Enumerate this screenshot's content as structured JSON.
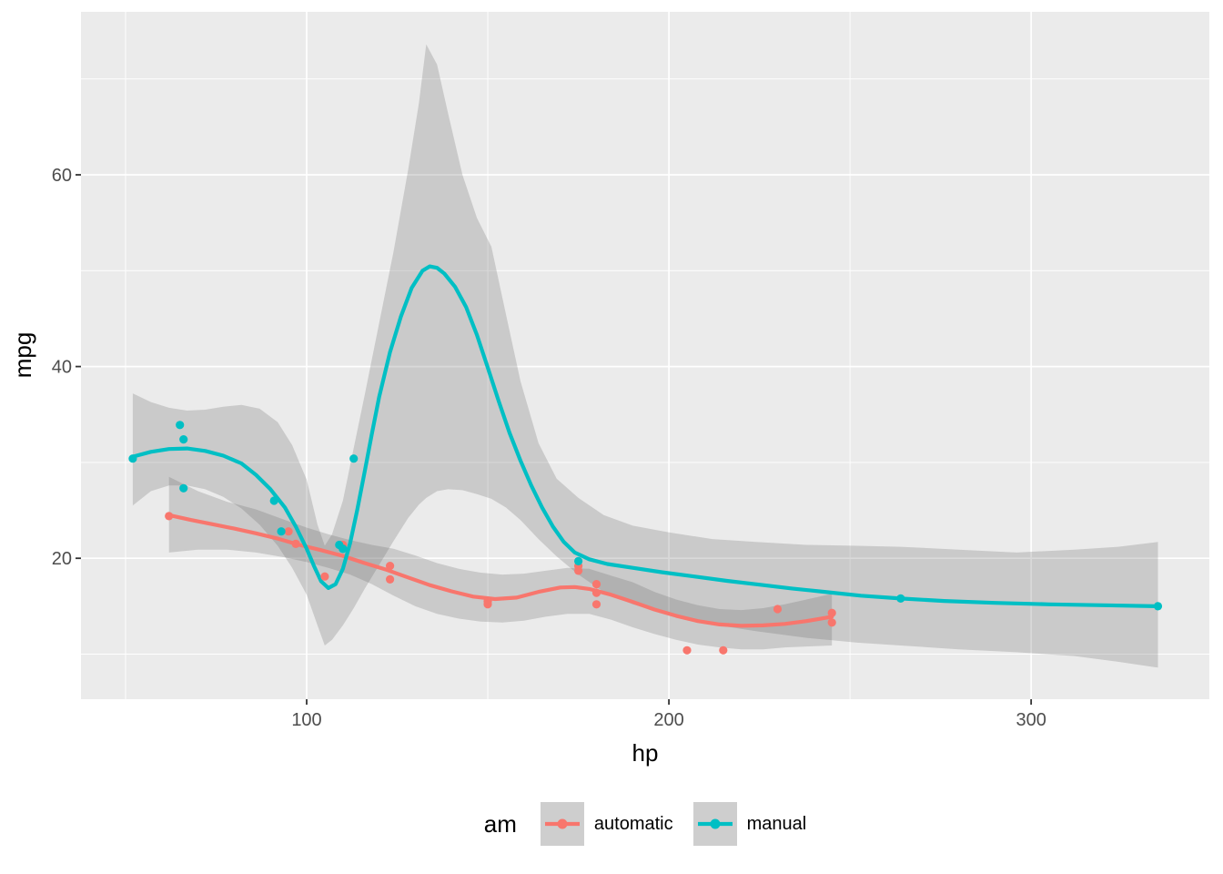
{
  "chart_data": {
    "type": "scatter",
    "title": "",
    "xlabel": "hp",
    "ylabel": "mpg",
    "x_domain": [
      37.7,
      349.2
    ],
    "y_domain": [
      5.3,
      77.0
    ],
    "x_ticks": [
      100,
      200,
      300
    ],
    "x_minor_ticks": [
      50,
      150,
      250
    ],
    "y_ticks": [
      20,
      40,
      60
    ],
    "y_minor_ticks": [
      10,
      30,
      50,
      70
    ],
    "grid": true,
    "legend": {
      "title": "am",
      "position": "bottom"
    },
    "colors": {
      "panel_bg": "#EBEBEB",
      "grid": "#FFFFFF",
      "tick_mark": "#333333",
      "tick_text": "#4D4D4D",
      "axis_title_text": "#000000",
      "ribbon_fill": "rgba(102,102,102,0.25)",
      "legend_key_bg": "#CECECE",
      "automatic": "#F8766D",
      "manual": "#00BFC4"
    },
    "series": [
      {
        "name": "automatic",
        "color": "#F8766D",
        "points": [
          [
            110,
            21.4
          ],
          [
            175,
            18.7
          ],
          [
            105,
            18.1
          ],
          [
            245,
            14.3
          ],
          [
            62,
            24.4
          ],
          [
            95,
            22.8
          ],
          [
            123,
            19.2
          ],
          [
            123,
            17.8
          ],
          [
            180,
            16.4
          ],
          [
            180,
            17.3
          ],
          [
            180,
            15.2
          ],
          [
            205,
            10.4
          ],
          [
            215,
            10.4
          ],
          [
            230,
            14.7
          ],
          [
            97,
            21.5
          ],
          [
            150,
            15.5
          ],
          [
            150,
            15.2
          ],
          [
            245,
            13.3
          ],
          [
            175,
            19.2
          ]
        ],
        "smooth": [
          [
            62,
            24.5
          ],
          [
            68,
            24.0
          ],
          [
            74,
            23.55
          ],
          [
            80,
            23.1
          ],
          [
            86,
            22.6
          ],
          [
            92,
            22.05
          ],
          [
            98,
            21.4
          ],
          [
            104,
            20.85
          ],
          [
            110,
            20.25
          ],
          [
            116,
            19.5
          ],
          [
            122,
            18.8
          ],
          [
            128,
            18.0
          ],
          [
            134,
            17.2
          ],
          [
            140,
            16.55
          ],
          [
            146,
            16.0
          ],
          [
            152,
            15.75
          ],
          [
            158,
            15.9
          ],
          [
            164,
            16.5
          ],
          [
            170,
            16.95
          ],
          [
            174,
            17.0
          ],
          [
            178,
            16.8
          ],
          [
            184,
            16.2
          ],
          [
            190,
            15.45
          ],
          [
            196,
            14.65
          ],
          [
            202,
            14.0
          ],
          [
            208,
            13.45
          ],
          [
            214,
            13.1
          ],
          [
            220,
            12.95
          ],
          [
            226,
            13.0
          ],
          [
            232,
            13.15
          ],
          [
            238,
            13.45
          ],
          [
            245,
            13.9
          ]
        ],
        "ribbon": [
          [
            62,
            20.6,
            28.5
          ],
          [
            70,
            20.9,
            27.0
          ],
          [
            78,
            20.9,
            25.9
          ],
          [
            86,
            20.6,
            25.1
          ],
          [
            94,
            20.1,
            24.0
          ],
          [
            100,
            19.6,
            23.2
          ],
          [
            106,
            19.0,
            22.5
          ],
          [
            112,
            18.3,
            21.9
          ],
          [
            118,
            17.3,
            21.4
          ],
          [
            124,
            16.1,
            21.0
          ],
          [
            130,
            15.0,
            20.3
          ],
          [
            136,
            14.2,
            19.5
          ],
          [
            142,
            13.7,
            18.9
          ],
          [
            148,
            13.4,
            18.5
          ],
          [
            154,
            13.3,
            18.3
          ],
          [
            160,
            13.5,
            18.4
          ],
          [
            166,
            13.9,
            18.7
          ],
          [
            172,
            14.2,
            19.0
          ],
          [
            178,
            14.2,
            18.9
          ],
          [
            184,
            13.6,
            18.2
          ],
          [
            190,
            12.8,
            17.5
          ],
          [
            196,
            12.1,
            16.5
          ],
          [
            202,
            11.5,
            15.7
          ],
          [
            208,
            11.0,
            15.1
          ],
          [
            214,
            10.7,
            14.7
          ],
          [
            220,
            10.5,
            14.6
          ],
          [
            226,
            10.5,
            14.8
          ],
          [
            232,
            10.7,
            15.2
          ],
          [
            238,
            10.8,
            15.7
          ],
          [
            245,
            10.9,
            16.3
          ]
        ]
      },
      {
        "name": "manual",
        "color": "#00BFC4",
        "points": [
          [
            110,
            21.0
          ],
          [
            110,
            21.0
          ],
          [
            93,
            22.8
          ],
          [
            66,
            32.4
          ],
          [
            52,
            30.4
          ],
          [
            65,
            33.9
          ],
          [
            66,
            27.3
          ],
          [
            91,
            26.0
          ],
          [
            113,
            30.4
          ],
          [
            264,
            15.8
          ],
          [
            175,
            19.7
          ],
          [
            335,
            15.0
          ],
          [
            109,
            21.4
          ]
        ],
        "smooth": [
          [
            52,
            30.6
          ],
          [
            57,
            31.1
          ],
          [
            62,
            31.4
          ],
          [
            67,
            31.45
          ],
          [
            72,
            31.2
          ],
          [
            77,
            30.7
          ],
          [
            82,
            29.9
          ],
          [
            86,
            28.7
          ],
          [
            90,
            27.2
          ],
          [
            94,
            25.3
          ],
          [
            97,
            23.3
          ],
          [
            100,
            21.0
          ],
          [
            102,
            19.2
          ],
          [
            104,
            17.6
          ],
          [
            106,
            16.9
          ],
          [
            108,
            17.3
          ],
          [
            110,
            18.9
          ],
          [
            112,
            21.6
          ],
          [
            114,
            25.1
          ],
          [
            116,
            29.0
          ],
          [
            118,
            33.0
          ],
          [
            120,
            36.8
          ],
          [
            123,
            41.5
          ],
          [
            126,
            45.2
          ],
          [
            129,
            48.2
          ],
          [
            132,
            50.0
          ],
          [
            134,
            50.45
          ],
          [
            136,
            50.3
          ],
          [
            138,
            49.7
          ],
          [
            141,
            48.3
          ],
          [
            144,
            46.2
          ],
          [
            147,
            43.3
          ],
          [
            150,
            39.9
          ],
          [
            153,
            36.4
          ],
          [
            156,
            33.1
          ],
          [
            159,
            30.2
          ],
          [
            162,
            27.6
          ],
          [
            165,
            25.3
          ],
          [
            168,
            23.3
          ],
          [
            171,
            21.7
          ],
          [
            174,
            20.6
          ],
          [
            178,
            19.9
          ],
          [
            183,
            19.4
          ],
          [
            190,
            19.0
          ],
          [
            198,
            18.55
          ],
          [
            207,
            18.1
          ],
          [
            216,
            17.65
          ],
          [
            225,
            17.25
          ],
          [
            234,
            16.85
          ],
          [
            243,
            16.5
          ],
          [
            253,
            16.1
          ],
          [
            264,
            15.8
          ],
          [
            276,
            15.55
          ],
          [
            290,
            15.35
          ],
          [
            305,
            15.2
          ],
          [
            320,
            15.1
          ],
          [
            335,
            15.0
          ]
        ],
        "ribbon": [
          [
            52,
            25.5,
            37.2
          ],
          [
            57,
            27.0,
            36.3
          ],
          [
            62,
            27.6,
            35.7
          ],
          [
            67,
            27.6,
            35.4
          ],
          [
            72,
            27.2,
            35.5
          ],
          [
            77,
            26.4,
            35.8
          ],
          [
            82,
            25.2,
            36.0
          ],
          [
            87,
            23.5,
            35.6
          ],
          [
            92,
            21.3,
            34.2
          ],
          [
            96,
            19.0,
            31.8
          ],
          [
            100,
            16.2,
            28.2
          ],
          [
            103,
            13.0,
            23.5
          ],
          [
            105,
            10.9,
            21.3
          ],
          [
            107,
            11.5,
            22.5
          ],
          [
            110,
            13.0,
            26.0
          ],
          [
            113,
            14.8,
            31.5
          ],
          [
            116,
            16.8,
            37.0
          ],
          [
            120,
            19.3,
            44.5
          ],
          [
            124,
            21.8,
            52.0
          ],
          [
            128,
            24.2,
            60.5
          ],
          [
            131,
            25.6,
            67.5
          ],
          [
            133,
            26.3,
            73.6
          ],
          [
            136,
            27.0,
            71.5
          ],
          [
            139,
            27.2,
            66.5
          ],
          [
            143,
            27.1,
            60.0
          ],
          [
            147,
            26.7,
            55.5
          ],
          [
            151,
            26.2,
            52.5
          ],
          [
            155,
            25.3,
            45.5
          ],
          [
            159,
            24.0,
            38.5
          ],
          [
            164,
            22.0,
            32.0
          ],
          [
            169,
            20.2,
            28.3
          ],
          [
            175,
            18.3,
            26.3
          ],
          [
            182,
            16.5,
            24.5
          ],
          [
            190,
            15.2,
            23.4
          ],
          [
            200,
            14.1,
            22.7
          ],
          [
            212,
            13.1,
            22.0
          ],
          [
            224,
            12.4,
            21.7
          ],
          [
            238,
            11.7,
            21.4
          ],
          [
            252,
            11.2,
            21.3
          ],
          [
            264,
            10.9,
            21.2
          ],
          [
            280,
            10.5,
            20.9
          ],
          [
            296,
            10.2,
            20.6
          ],
          [
            312,
            9.8,
            20.9
          ],
          [
            324,
            9.2,
            21.2
          ],
          [
            335,
            8.6,
            21.7
          ]
        ]
      }
    ]
  }
}
